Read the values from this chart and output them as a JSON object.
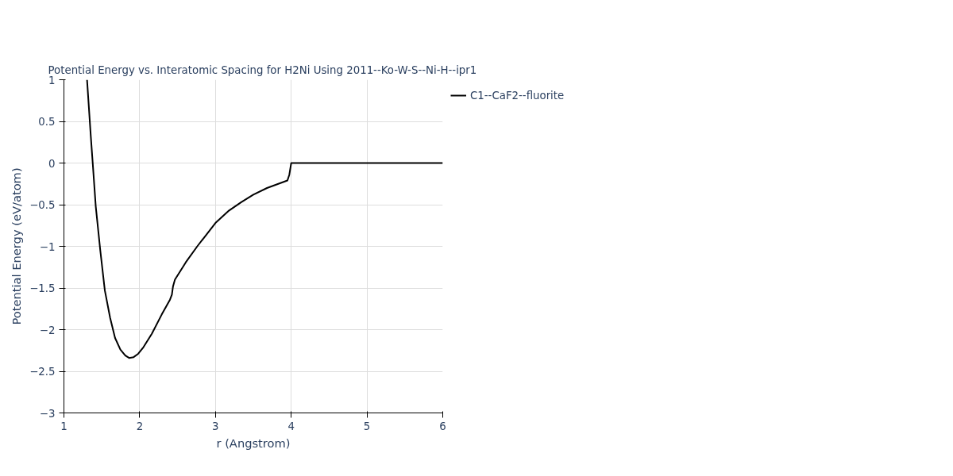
{
  "chart_data": {
    "type": "line",
    "title": "Potential Energy vs. Interatomic Spacing for H2Ni Using 2011--Ko-W-S--Ni-H--ipr1",
    "xlabel": "r (Angstrom)",
    "ylabel": "Potential Energy (eV/atom)",
    "x": [
      1.305,
      1.354,
      1.38,
      1.42,
      1.48,
      1.54,
      1.61,
      1.675,
      1.745,
      1.81,
      1.86,
      1.92,
      1.98,
      2.05,
      2.16,
      2.29,
      2.4,
      2.425,
      2.44,
      2.465,
      2.61,
      2.76,
      2.88,
      3.0,
      3.18,
      3.34,
      3.5,
      3.68,
      3.95,
      3.975,
      4.0,
      6.0
    ],
    "series": [
      {
        "name": "C1--CaF2--fluorite",
        "color": "#000000",
        "values": [
          1.0,
          0.33,
          0.0,
          -0.52,
          -1.05,
          -1.53,
          -1.86,
          -2.1,
          -2.24,
          -2.31,
          -2.34,
          -2.33,
          -2.29,
          -2.21,
          -2.05,
          -1.82,
          -1.64,
          -1.58,
          -1.48,
          -1.4,
          -1.19,
          -1.0,
          -0.86,
          -0.72,
          -0.57,
          -0.47,
          -0.38,
          -0.3,
          -0.21,
          -0.14,
          0.0,
          0.0
        ]
      }
    ],
    "xlim": [
      1,
      6
    ],
    "ylim": [
      -3,
      1
    ],
    "xticks": [
      1,
      2,
      3,
      4,
      5,
      6
    ],
    "yticks": [
      -3,
      -2.5,
      -2,
      -1.5,
      -1,
      -0.5,
      0,
      0.5,
      1
    ],
    "grid": true,
    "legend": "top right",
    "line_style": "solid",
    "marker": "none"
  }
}
